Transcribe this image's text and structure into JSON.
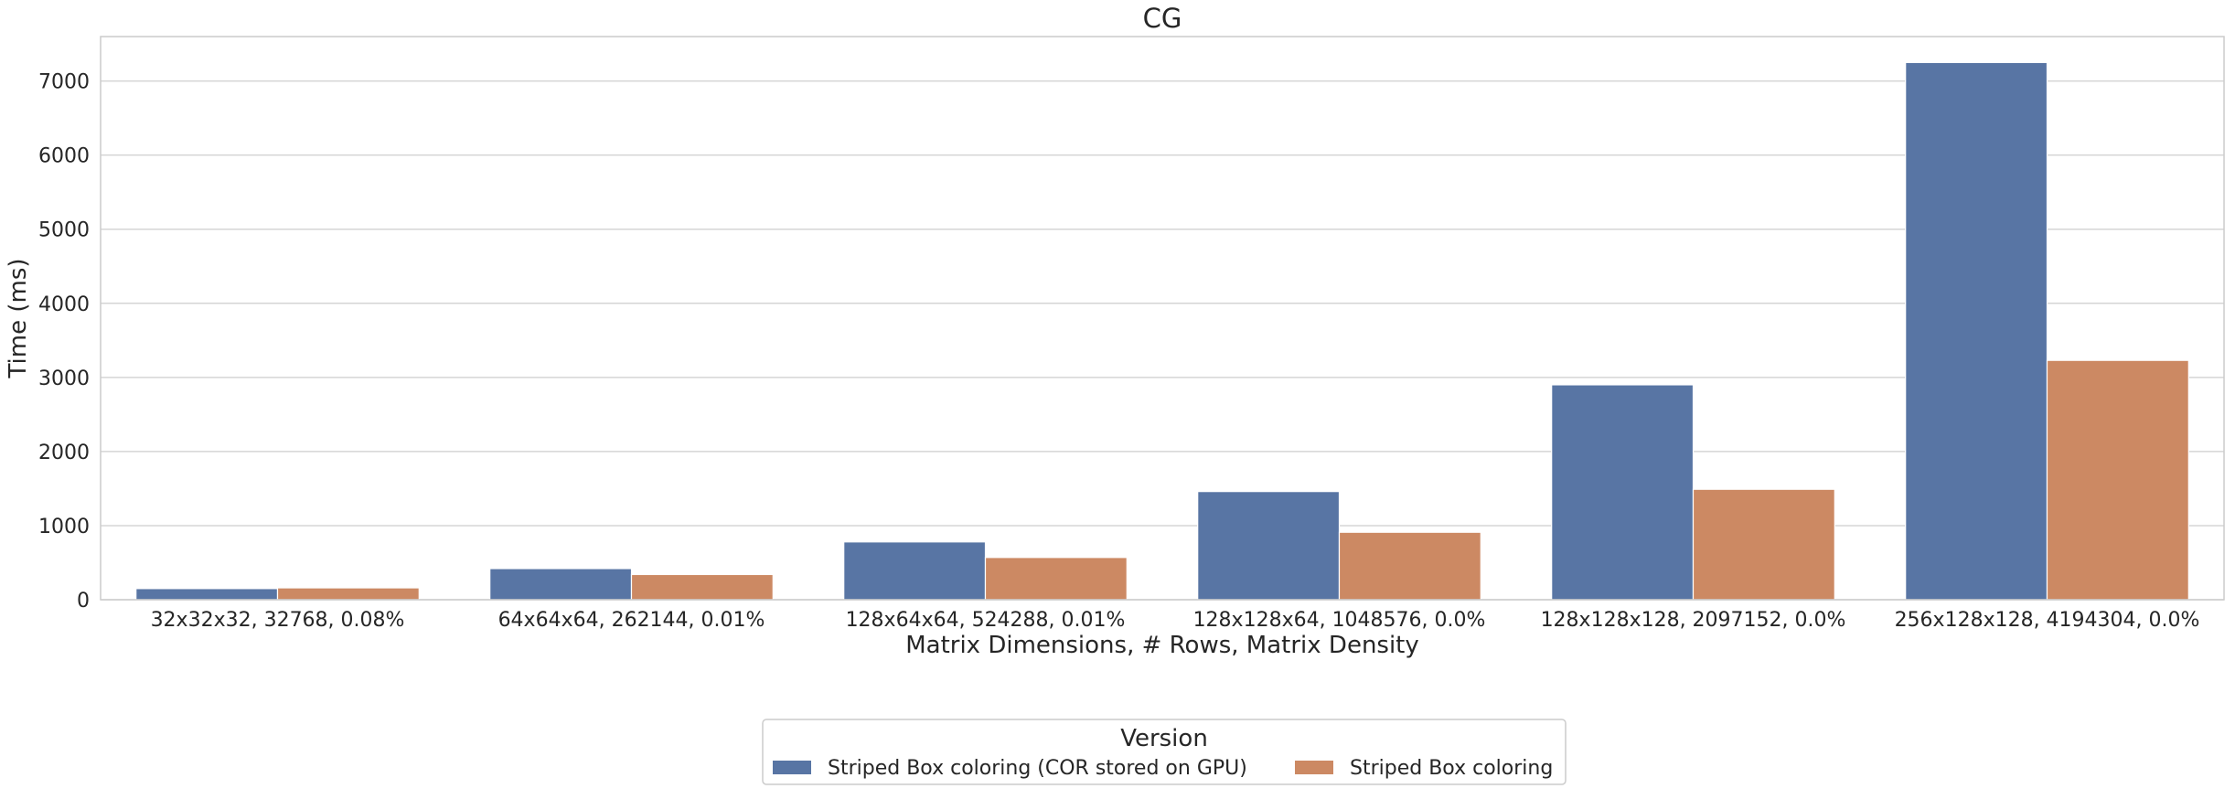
{
  "chart_data": {
    "type": "bar",
    "title": "CG",
    "xlabel": "Matrix Dimensions, # Rows, Matrix Density",
    "ylabel": "Time (ms)",
    "ylim": [
      0,
      7600
    ],
    "yticks": [
      0,
      1000,
      2000,
      3000,
      4000,
      5000,
      6000,
      7000
    ],
    "grid": "horizontal",
    "categories": [
      "32x32x32, 32768, 0.08%",
      "64x64x64, 262144, 0.01%",
      "128x64x64, 524288, 0.01%",
      "128x128x64, 1048576, 0.0%",
      "128x128x128, 2097152, 0.0%",
      "256x128x128, 4194304, 0.0%"
    ],
    "series": [
      {
        "name": "Striped Box coloring (COR stored on GPU)",
        "color": "#5875a4",
        "values": [
          150,
          420,
          780,
          1460,
          2900,
          7250
        ]
      },
      {
        "name": "Striped Box coloring",
        "color": "#cc8963",
        "values": [
          160,
          340,
          570,
          910,
          1490,
          3230
        ]
      }
    ],
    "legend": {
      "title": "Version",
      "placement": "bottom-center"
    }
  }
}
